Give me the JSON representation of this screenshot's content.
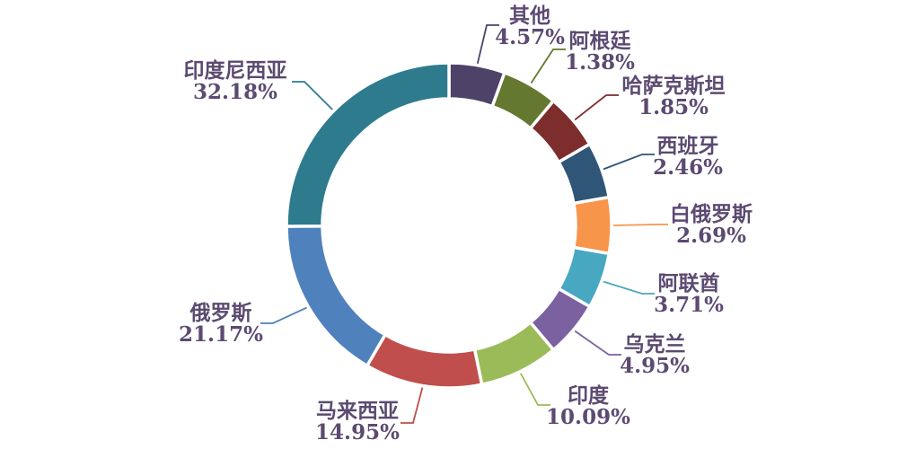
{
  "chart_data": {
    "type": "pie",
    "subtype": "donut",
    "title": "",
    "unit": "%",
    "background_color": "#FFFFFF",
    "label_text_color": "#5C4A72",
    "separator_color": "#FFFFFF",
    "start_angle_deg": 0,
    "clockwise": true,
    "min_angle_deg": 20,
    "legend": "none",
    "slices": [
      {
        "label": "其他",
        "value": 4.57,
        "pct_label": "4.57%",
        "color": "#4F4268"
      },
      {
        "label": "阿根廷",
        "value": 1.38,
        "pct_label": "1.38%",
        "color": "#64782F"
      },
      {
        "label": "哈萨克斯坦",
        "value": 1.85,
        "pct_label": "1.85%",
        "color": "#7D2D2C"
      },
      {
        "label": "西班牙",
        "value": 2.46,
        "pct_label": "2.46%",
        "color": "#2F5677"
      },
      {
        "label": "白俄罗斯",
        "value": 2.69,
        "pct_label": "2.69%",
        "color": "#F7964A"
      },
      {
        "label": "阿联酋",
        "value": 3.71,
        "pct_label": "3.71%",
        "color": "#48A8C2"
      },
      {
        "label": "乌克兰",
        "value": 4.95,
        "pct_label": "4.95%",
        "color": "#7C61A0"
      },
      {
        "label": "印度",
        "value": 10.09,
        "pct_label": "10.09%",
        "color": "#9BBB59"
      },
      {
        "label": "马来西亚",
        "value": 14.95,
        "pct_label": "14.95%",
        "color": "#BF4E4C"
      },
      {
        "label": "俄罗斯",
        "value": 21.17,
        "pct_label": "21.17%",
        "color": "#4F81BD"
      },
      {
        "label": "印度尼西亚",
        "value": 32.18,
        "pct_label": "32.18%",
        "color": "#2E7B8E"
      }
    ]
  }
}
